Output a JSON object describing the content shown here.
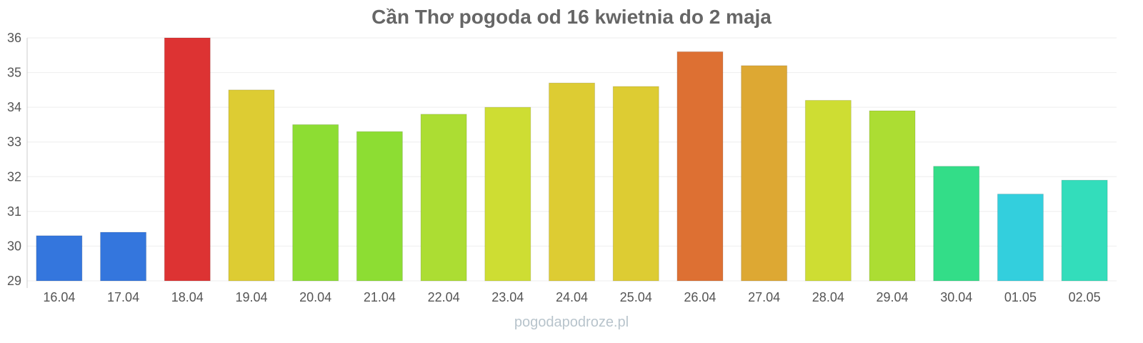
{
  "chart_data": {
    "type": "bar",
    "title": "Cần Thơ pogoda od 16 kwietnia do 2 maja",
    "xlabel": "",
    "ylabel": "",
    "ylim": [
      29,
      36
    ],
    "yticks": [
      "29",
      "30",
      "31",
      "32",
      "33",
      "34",
      "35",
      "36"
    ],
    "grid": true,
    "categories": [
      "16.04",
      "17.04",
      "18.04",
      "19.04",
      "20.04",
      "21.04",
      "22.04",
      "23.04",
      "24.04",
      "25.04",
      "26.04",
      "27.04",
      "28.04",
      "29.04",
      "30.04",
      "01.05",
      "02.05"
    ],
    "values": [
      30.3,
      30.4,
      36.0,
      34.5,
      33.5,
      33.3,
      33.8,
      34.0,
      34.7,
      34.6,
      35.6,
      35.2,
      34.2,
      33.9,
      32.3,
      31.5,
      31.9
    ],
    "colors": [
      "#3476dd",
      "#3476dd",
      "#dd3333",
      "#ddcc33",
      "#8ddd33",
      "#8ddd33",
      "#acdd33",
      "#cedd33",
      "#ddcc33",
      "#ddcc33",
      "#dd7033",
      "#dda833",
      "#cedd33",
      "#acdd33",
      "#33dd88",
      "#33cfdd",
      "#33ddbb"
    ]
  },
  "credit": "pogodapodroze.pl"
}
